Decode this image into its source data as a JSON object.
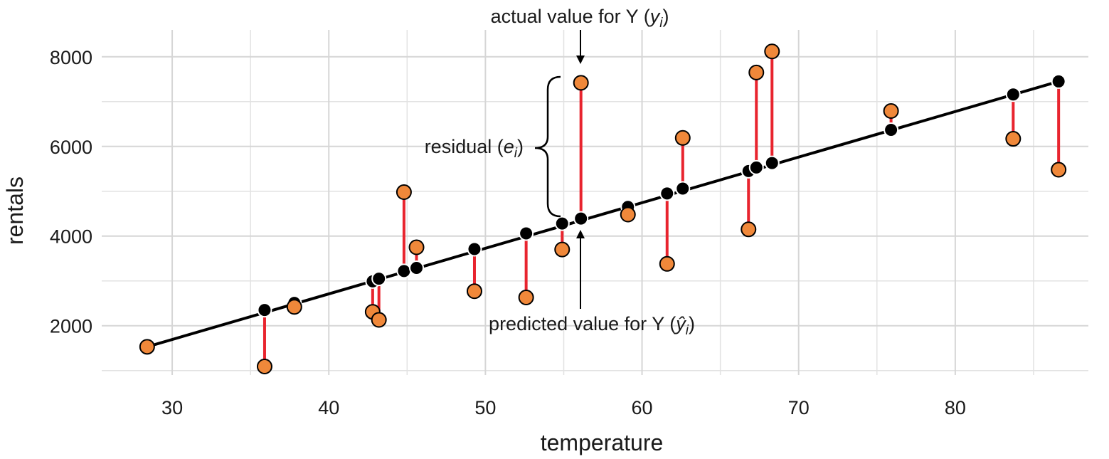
{
  "chart_data": {
    "type": "scatter",
    "xlabel": "temperature",
    "ylabel": "rentals",
    "xlim": [
      25.5,
      88.5
    ],
    "ylim": [
      900,
      8600
    ],
    "x_ticks": [
      30,
      40,
      50,
      60,
      70,
      80
    ],
    "x_tick_labels": [
      "30",
      "40",
      "50",
      "60",
      "70",
      "80"
    ],
    "y_ticks": [
      2000,
      4000,
      6000,
      8000
    ],
    "y_tick_labels": [
      "2000",
      "4000",
      "6000",
      "8000"
    ],
    "grid": true,
    "regression_line": {
      "x": [
        28.4,
        86.6
      ],
      "y": [
        1530,
        7450
      ]
    },
    "points": [
      {
        "x": 28.4,
        "actual": 1530,
        "predicted": 1560
      },
      {
        "x": 35.9,
        "actual": 1090,
        "predicted": 2350
      },
      {
        "x": 37.8,
        "actual": 2420,
        "predicted": 2510
      },
      {
        "x": 42.8,
        "actual": 2310,
        "predicted": 2990
      },
      {
        "x": 43.2,
        "actual": 2130,
        "predicted": 3050
      },
      {
        "x": 44.8,
        "actual": 4980,
        "predicted": 3220
      },
      {
        "x": 45.6,
        "actual": 3750,
        "predicted": 3290
      },
      {
        "x": 49.3,
        "actual": 2770,
        "predicted": 3710
      },
      {
        "x": 52.6,
        "actual": 2630,
        "predicted": 4060
      },
      {
        "x": 54.9,
        "actual": 3700,
        "predicted": 4280
      },
      {
        "x": 56.1,
        "actual": 7420,
        "predicted": 4390
      },
      {
        "x": 59.1,
        "actual": 4480,
        "predicted": 4650
      },
      {
        "x": 61.6,
        "actual": 3380,
        "predicted": 4950
      },
      {
        "x": 62.6,
        "actual": 6190,
        "predicted": 5060
      },
      {
        "x": 66.8,
        "actual": 4150,
        "predicted": 5450
      },
      {
        "x": 67.3,
        "actual": 7650,
        "predicted": 5530
      },
      {
        "x": 68.3,
        "actual": 8120,
        "predicted": 5630
      },
      {
        "x": 75.9,
        "actual": 6790,
        "predicted": 6370
      },
      {
        "x": 83.7,
        "actual": 6170,
        "predicted": 7160
      },
      {
        "x": 86.6,
        "actual": 5480,
        "predicted": 7450
      }
    ],
    "annotations": {
      "actual_prefix": "actual value for Y (",
      "actual_var": "y",
      "actual_sub": "i",
      "actual_suffix": ")",
      "predicted_prefix": "predicted value for Y (",
      "predicted_var": "ŷ",
      "predicted_sub": "i",
      "predicted_suffix": ")",
      "residual_prefix": "residual (",
      "residual_var": "e",
      "residual_sub": "i",
      "residual_suffix": ")"
    },
    "colors": {
      "actual_fill": "#f0883a",
      "predicted_fill": "#000000",
      "residual_line": "#e8242e",
      "regression_line": "#000000"
    }
  }
}
